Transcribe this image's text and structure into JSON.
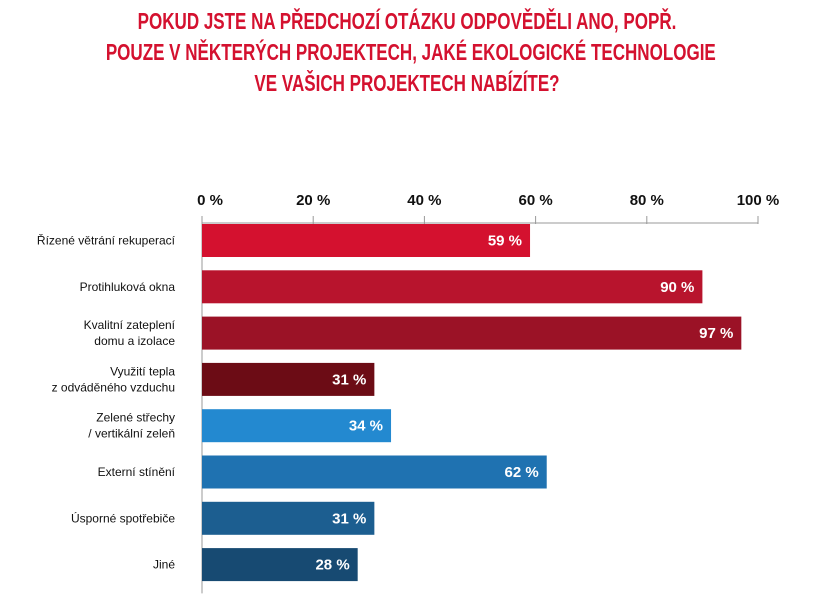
{
  "chart_data": {
    "type": "bar",
    "orientation": "horizontal",
    "title_lines": [
      "POKUD JSTE NA PŘEDCHOZÍ OTÁZKU ODPOVĚDĚLI ANO, POPŘ.",
      "POUZE V NĚKTERÝCH PROJEKTECH, JAKÉ EKOLOGICKÉ TECHNOLOGIE",
      "VE VAŠICH PROJEKTECH NABÍZÍTE?"
    ],
    "categories": [
      [
        "Řízené větrání rekuperací"
      ],
      [
        "Protihluková okna"
      ],
      [
        "Kvalitní zateplení",
        "domu a izolace"
      ],
      [
        "Využití tepla",
        "z odváděného vzduchu"
      ],
      [
        "Zelené střechy",
        "/ vertikální zeleň"
      ],
      [
        "Externí stínění"
      ],
      [
        "Úsporné spotřebiče"
      ],
      [
        "Jiné"
      ]
    ],
    "values": [
      59,
      90,
      97,
      31,
      34,
      62,
      31,
      28
    ],
    "value_labels": [
      "59 %",
      "90 %",
      "97 %",
      "31 %",
      "34 %",
      "62 %",
      "31 %",
      "28 %"
    ],
    "colors": [
      "#d4112f",
      "#b8142d",
      "#9b1226",
      "#6c0c15",
      "#2389d0",
      "#1f72b1",
      "#1c5e90",
      "#174a72"
    ],
    "xlim": [
      0,
      100
    ],
    "x_ticks": [
      0,
      20,
      40,
      60,
      80,
      100
    ],
    "x_tick_labels": [
      "0 %",
      "20 %",
      "40 %",
      "60 %",
      "80 %",
      "100 %"
    ],
    "title_color": "#d4112f",
    "xlabel": "",
    "ylabel": ""
  }
}
